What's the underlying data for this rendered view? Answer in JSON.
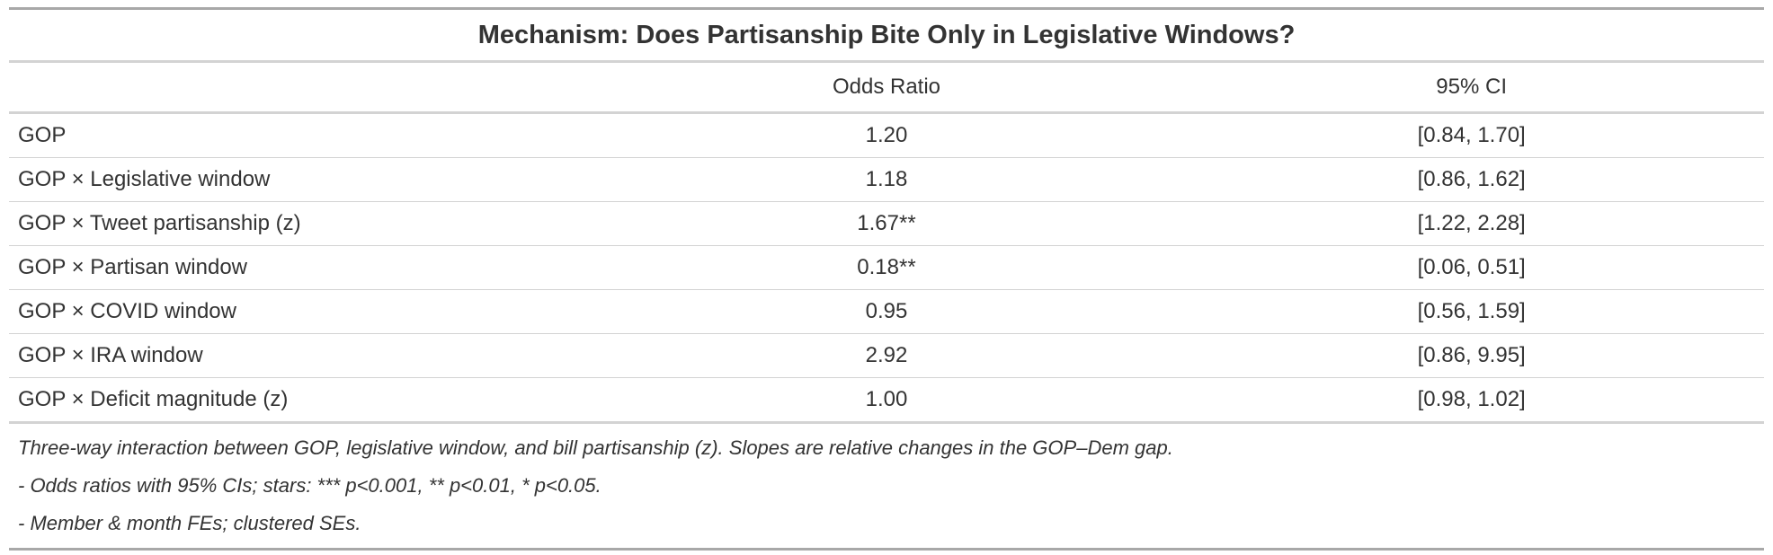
{
  "table": {
    "title": "Mechanism: Does Partisanship Bite Only in Legislative Windows?",
    "columns": [
      "",
      "Odds Ratio",
      "95% CI"
    ],
    "rows": [
      {
        "term": "GOP",
        "odds_ratio": "1.20",
        "ci": "[0.84, 1.70]"
      },
      {
        "term": "GOP × Legislative window",
        "odds_ratio": "1.18",
        "ci": "[0.86, 1.62]"
      },
      {
        "term": "GOP × Tweet partisanship (z)",
        "odds_ratio": "1.67**",
        "ci": "[1.22, 2.28]"
      },
      {
        "term": "GOP × Partisan window",
        "odds_ratio": "0.18**",
        "ci": "[0.06, 0.51]"
      },
      {
        "term": "GOP × COVID window",
        "odds_ratio": "0.95",
        "ci": "[0.56, 1.59]"
      },
      {
        "term": "GOP × IRA window",
        "odds_ratio": "2.92",
        "ci": "[0.86, 9.95]"
      },
      {
        "term": "GOP × Deficit magnitude (z)",
        "odds_ratio": "1.00",
        "ci": "[0.98, 1.02]"
      }
    ],
    "notes": [
      "Three-way interaction between GOP, legislative window, and bill partisanship (z). Slopes are relative changes in the GOP–Dem gap.",
      "- Odds ratios with 95% CIs; stars: *** p<0.001, ** p<0.01, * p<0.05.",
      "- Member & month FEs; clustered SEs."
    ]
  }
}
